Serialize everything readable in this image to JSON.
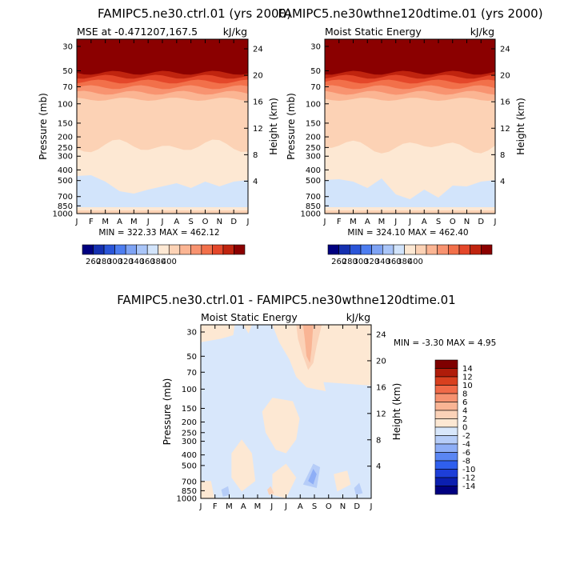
{
  "chart_data": [
    {
      "type": "heatmap",
      "title": "FAMIPC5.ne30.ctrl.01 (yrs 2000)",
      "subtitle_left": "MSE at -0.471207,167.5",
      "subtitle_right": "kJ/kg",
      "xlabel": "",
      "ylabel": "Pressure (mb)",
      "ylabel_right": "Height (km)",
      "x_ticks": [
        "J",
        "F",
        "M",
        "A",
        "M",
        "J",
        "J",
        "A",
        "S",
        "O",
        "N",
        "D",
        "J"
      ],
      "y_ticks": [
        "30",
        "50",
        "70",
        "100",
        "150",
        "200",
        "250",
        "300",
        "400",
        "500",
        "700",
        "850",
        "1000"
      ],
      "y_ticks_right": [
        "24",
        "20",
        "16",
        "12",
        "8",
        "4"
      ],
      "min_max_text": "MIN = 322.33 MAX = 462.12",
      "min": 322.33,
      "max": 462.12,
      "colorbar_labels": [
        "260",
        "280",
        "300",
        "320",
        "340",
        "360",
        "380",
        "400"
      ],
      "colorbar_orientation": "horizontal"
    },
    {
      "type": "heatmap",
      "title": "FAMIPC5.ne30wthne120dtime.01 (yrs 2000)",
      "subtitle_left": "Moist Static Energy",
      "subtitle_right": "kJ/kg",
      "xlabel": "",
      "ylabel": "Pressure (mb)",
      "ylabel_right": "Height (km)",
      "x_ticks": [
        "J",
        "F",
        "M",
        "A",
        "M",
        "J",
        "J",
        "A",
        "S",
        "O",
        "N",
        "D",
        "J"
      ],
      "y_ticks": [
        "30",
        "50",
        "70",
        "100",
        "150",
        "200",
        "250",
        "300",
        "400",
        "500",
        "700",
        "850",
        "1000"
      ],
      "y_ticks_right": [
        "24",
        "20",
        "16",
        "12",
        "8",
        "4"
      ],
      "min_max_text": "MIN = 324.10 MAX = 462.40",
      "min": 324.1,
      "max": 462.4,
      "colorbar_labels": [
        "260",
        "280",
        "300",
        "320",
        "340",
        "360",
        "380",
        "400"
      ],
      "colorbar_orientation": "horizontal"
    },
    {
      "type": "heatmap",
      "title": "FAMIPC5.ne30.ctrl.01 - FAMIPC5.ne30wthne120dtime.01",
      "subtitle_left": "Moist Static Energy",
      "subtitle_right": "kJ/kg",
      "xlabel": "",
      "ylabel": "Pressure (mb)",
      "ylabel_right": "Height (km)",
      "x_ticks": [
        "J",
        "F",
        "M",
        "A",
        "M",
        "J",
        "J",
        "A",
        "S",
        "O",
        "N",
        "D",
        "J"
      ],
      "y_ticks": [
        "30",
        "50",
        "70",
        "100",
        "150",
        "200",
        "250",
        "300",
        "400",
        "500",
        "700",
        "850",
        "1000"
      ],
      "y_ticks_right": [
        "24",
        "20",
        "16",
        "12",
        "8",
        "4"
      ],
      "min_max_text": "MIN = -3.30 MAX = 4.95",
      "min": -3.3,
      "max": 4.95,
      "colorbar_labels": [
        "14",
        "12",
        "10",
        "8",
        "6",
        "4",
        "2",
        "0",
        "-2",
        "-4",
        "-6",
        "-8",
        "-10",
        "-12",
        "-14"
      ],
      "colorbar_orientation": "vertical"
    }
  ],
  "colors": {
    "abs_scale": [
      "#000080",
      "#1530b0",
      "#2a55d8",
      "#4d7df0",
      "#7ea3f4",
      "#a9c5f8",
      "#d2e4fb",
      "#fde8d3",
      "#fcd2b5",
      "#fbb593",
      "#f89370",
      "#f2704a",
      "#e4472a",
      "#c0240f",
      "#8b0000"
    ],
    "diff_scale": [
      "#000080",
      "#0b1fb0",
      "#1d3ed8",
      "#2f5fee",
      "#5a86f3",
      "#8eaef6",
      "#b6cdf8",
      "#d8e7fb",
      "#fde8d3",
      "#fbd2b8",
      "#f9b494",
      "#f69270",
      "#f06a48",
      "#d8401f",
      "#b01c0a",
      "#7f0000"
    ]
  }
}
